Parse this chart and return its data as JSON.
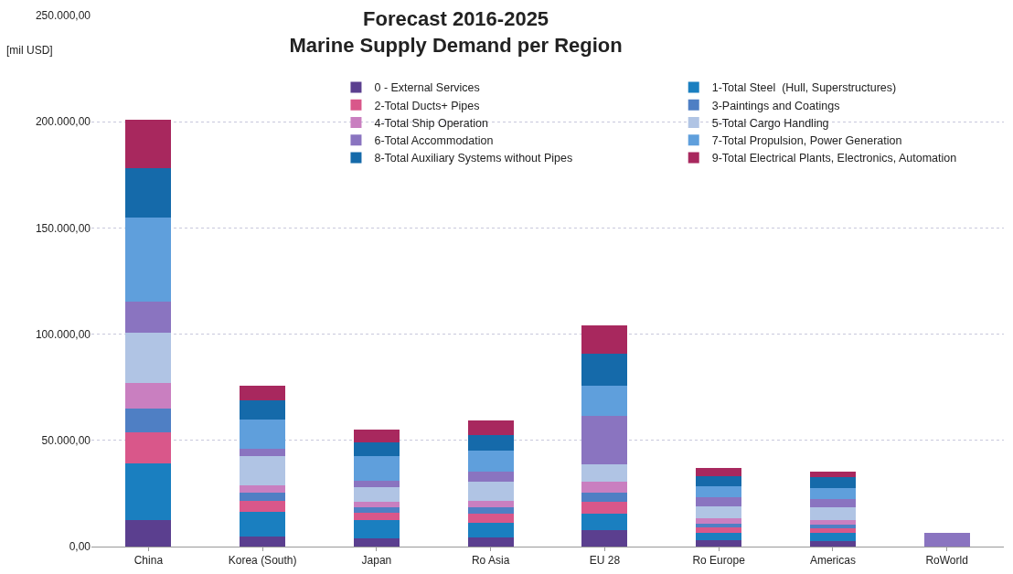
{
  "chart_data": {
    "type": "bar",
    "title": "Forecast 2016-2025\nMarine Supply Demand per Region",
    "ylabel": "[mil USD]",
    "stacked": true,
    "grid": "y",
    "legend": "top right",
    "categories": [
      "China",
      "Korea (South)",
      "Japan",
      "Ro Asia",
      "EU 28",
      "Ro Europe",
      "Americas",
      "RoWorld"
    ],
    "ylim": [
      0,
      250000
    ],
    "yticks": [
      {
        "value": 0,
        "label": "0,00"
      },
      {
        "value": 50000,
        "label": "50.000,00"
      },
      {
        "value": 100000,
        "label": "100.000,00"
      },
      {
        "value": 150000,
        "label": "150.000,00"
      },
      {
        "value": 200000,
        "label": "200.000,00"
      },
      {
        "value": 250000,
        "label": "250.000,00"
      }
    ],
    "series": [
      {
        "name": "0 - External Services",
        "color": "#5b3f8f",
        "values": [
          12400,
          4800,
          3700,
          4400,
          7800,
          2800,
          2600,
          null
        ]
      },
      {
        "name": "1-Total Steel  (Hull, Superstructures)",
        "color": "#1a7fc0",
        "values": [
          26900,
          11700,
          8800,
          6700,
          7800,
          3800,
          3700,
          0
        ]
      },
      {
        "name": "2-Total Ducts+ Pipes",
        "color": "#d9578a",
        "values": [
          14500,
          5000,
          3300,
          4300,
          5700,
          2600,
          2400,
          0
        ]
      },
      {
        "name": "3-Paintings and Coatings",
        "color": "#4f7fc4",
        "values": [
          11100,
          3800,
          2900,
          3300,
          4200,
          1700,
          1700,
          0
        ]
      },
      {
        "name": "4-Total Ship Operation",
        "color": "#c97fc0",
        "values": [
          12000,
          3700,
          2400,
          2800,
          4900,
          2300,
          2200,
          0
        ]
      },
      {
        "name": "5-Total Cargo Handling",
        "color": "#b0c4e4",
        "values": [
          23900,
          13800,
          6800,
          9200,
          8500,
          5900,
          5800,
          0
        ]
      },
      {
        "name": "6-Total Accommodation",
        "color": "#8a74c0",
        "values": [
          14500,
          3300,
          3100,
          4600,
          22700,
          4000,
          3800,
          6500
        ]
      },
      {
        "name": "7-Total Propulsion, Power Generation",
        "color": "#5f9fdc",
        "values": [
          39700,
          13800,
          11400,
          9700,
          14200,
          5200,
          5300,
          0
        ]
      },
      {
        "name": "8-Total Auxiliary Systems without Pipes",
        "color": "#156aaa",
        "values": [
          23000,
          9000,
          6600,
          7400,
          14900,
          5000,
          5300,
          0
        ]
      },
      {
        "name": "9-Total Electrical Plants, Electronics, Automation",
        "color": "#a8285e",
        "values": [
          23000,
          6700,
          6200,
          6800,
          13300,
          3900,
          2700,
          0
        ]
      }
    ]
  }
}
